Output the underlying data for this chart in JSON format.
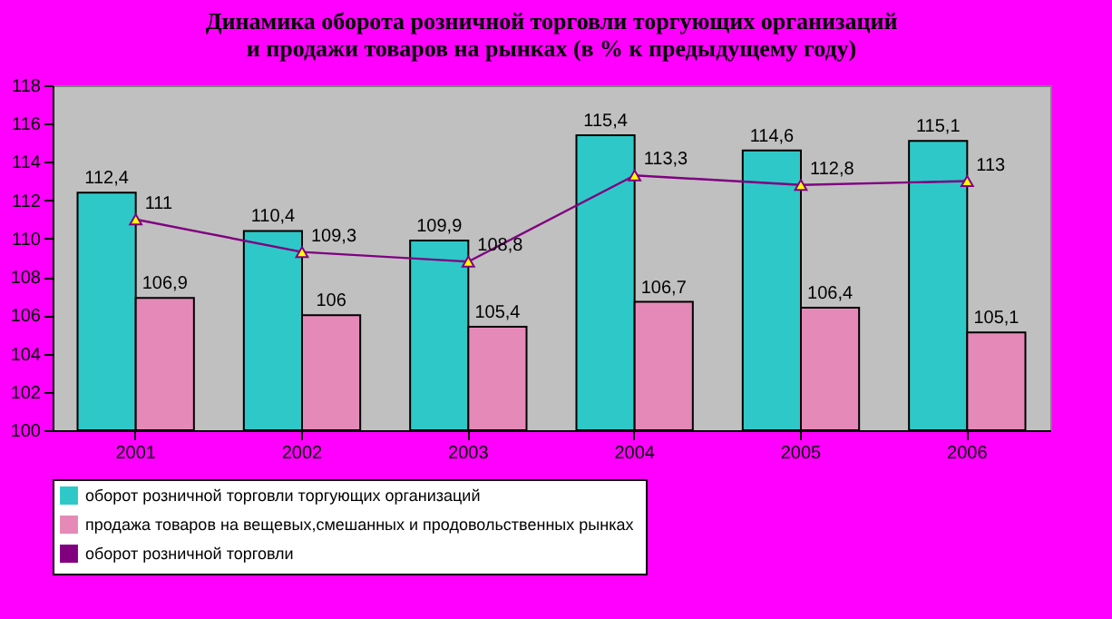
{
  "chart_data": {
    "type": "bar",
    "title": "Динамика оборота розничной торговли торгующих организаций\nи продажи товаров на рынках (в % к предыдущему году)",
    "categories": [
      "2001",
      "2002",
      "2003",
      "2004",
      "2005",
      "2006"
    ],
    "series": [
      {
        "name": "оборот розничной торговли торгующих организаций",
        "color": "#2ec8c8",
        "values": [
          112.4,
          110.4,
          109.9,
          115.4,
          114.6,
          115.1
        ],
        "value_labels": [
          "112,4",
          "110,4",
          "109,9",
          "115,4",
          "114,6",
          "115,1"
        ]
      },
      {
        "name": "продажа товаров на вещевых,смешанных  и продовольственных рынках",
        "color": "#e58ab8",
        "values": [
          106.9,
          106,
          105.4,
          106.7,
          106.4,
          105.1
        ],
        "value_labels": [
          "106,9",
          "106",
          "105,4",
          "106,7",
          "106,4",
          "105,1"
        ]
      },
      {
        "name": "оборот розничной торговли",
        "type": "line",
        "color": "#800080",
        "marker": "triangle",
        "values": [
          111,
          109.3,
          108.8,
          113.3,
          112.8,
          113
        ],
        "value_labels": [
          "111",
          "109,3",
          "108,8",
          "113,3",
          "112,8",
          "113"
        ]
      }
    ],
    "ylim": [
      100,
      118
    ],
    "yticks": [
      100,
      102,
      104,
      106,
      108,
      110,
      112,
      114,
      116,
      118
    ],
    "grid": false,
    "legend": "bottom"
  }
}
